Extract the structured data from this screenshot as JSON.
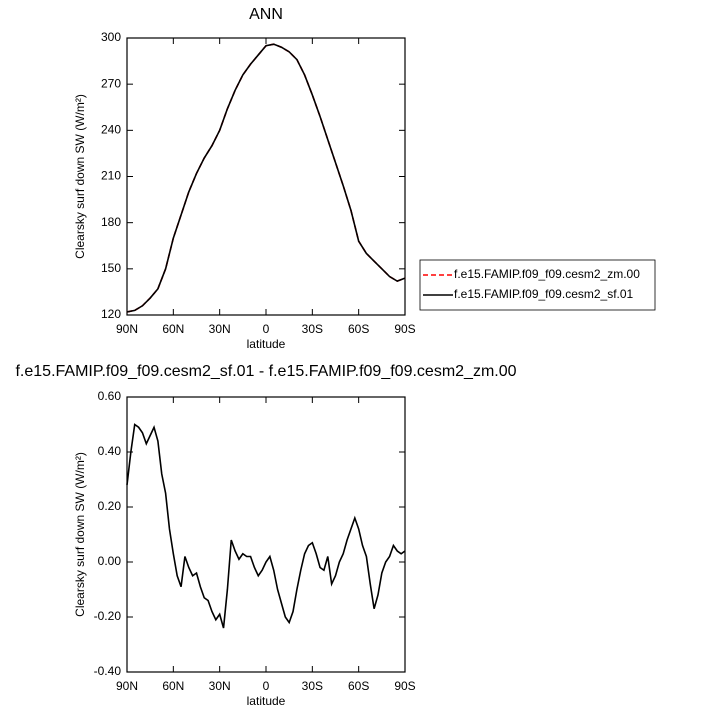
{
  "chart_data": [
    {
      "type": "line",
      "title": "ANN",
      "xlabel": "latitude",
      "ylabel": "Clearsky surf down SW (W/m²)",
      "x": [
        90,
        85,
        80,
        75,
        70,
        65,
        60,
        55,
        50,
        45,
        40,
        35,
        30,
        25,
        20,
        15,
        10,
        5,
        0,
        -5,
        -10,
        -15,
        -20,
        -25,
        -30,
        -35,
        -40,
        -45,
        -50,
        -55,
        -60,
        -65,
        -70,
        -75,
        -80,
        -85,
        -90
      ],
      "series": [
        {
          "name": "f.e15.FAMIP.f09_f09.cesm2_zm.00",
          "color": "#ff0000",
          "dashed": true,
          "values": [
            122,
            123,
            126,
            131,
            137,
            150,
            170,
            185,
            200,
            212,
            222,
            230,
            240,
            254,
            266,
            276,
            283,
            289,
            295,
            296,
            294,
            291,
            286,
            276,
            263,
            249,
            234,
            219,
            204,
            188,
            168,
            160,
            155,
            150,
            145,
            142,
            144
          ]
        },
        {
          "name": "f.e15.FAMIP.f09_f09.cesm2_sf.01",
          "color": "#000000",
          "dashed": false,
          "values": [
            122,
            123,
            126,
            131,
            137,
            150,
            170,
            185,
            200,
            212,
            222,
            230,
            240,
            254,
            266,
            276,
            283,
            289,
            295,
            296,
            294,
            291,
            286,
            276,
            263,
            249,
            234,
            219,
            204,
            188,
            168,
            160,
            155,
            150,
            145,
            142,
            144
          ]
        }
      ],
      "xlim": [
        90,
        -90
      ],
      "xticks": [
        {
          "value": 90,
          "label": "90N"
        },
        {
          "value": 60,
          "label": "60N"
        },
        {
          "value": 30,
          "label": "30N"
        },
        {
          "value": 0,
          "label": "0"
        },
        {
          "value": -30,
          "label": "30S"
        },
        {
          "value": -60,
          "label": "60S"
        },
        {
          "value": -90,
          "label": "90S"
        }
      ],
      "ylim": [
        120,
        300
      ],
      "yticks": [
        120,
        150,
        180,
        210,
        240,
        270,
        300
      ],
      "legend": "right"
    },
    {
      "type": "line",
      "title": "f.e15.FAMIP.f09_f09.cesm2_sf.01 - f.e15.FAMIP.f09_f09.cesm2_zm.00",
      "xlabel": "latitude",
      "ylabel": "Clearsky surf down SW (W/m²)",
      "x": [
        90,
        87.5,
        85,
        82.5,
        80,
        77.5,
        75,
        72.5,
        70,
        67.5,
        65,
        62.5,
        60,
        57.5,
        55,
        52.5,
        50,
        47.5,
        45,
        42.5,
        40,
        37.5,
        35,
        32.5,
        30,
        27.5,
        25,
        22.5,
        20,
        17.5,
        15,
        12.5,
        10,
        7.5,
        5,
        2.5,
        0,
        -2.5,
        -5,
        -7.5,
        -10,
        -12.5,
        -15,
        -17.5,
        -20,
        -22.5,
        -25,
        -27.5,
        -30,
        -32.5,
        -35,
        -37.5,
        -40,
        -42.5,
        -45,
        -47.5,
        -50,
        -52.5,
        -55,
        -57.5,
        -60,
        -62.5,
        -65,
        -67.5,
        -70,
        -72.5,
        -75,
        -77.5,
        -80,
        -82.5,
        -85,
        -87.5,
        -90
      ],
      "series": [
        {
          "color": "#000000",
          "dashed": false,
          "values": [
            0.28,
            0.4,
            0.5,
            0.49,
            0.47,
            0.43,
            0.46,
            0.49,
            0.44,
            0.32,
            0.25,
            0.12,
            0.03,
            -0.05,
            -0.09,
            0.02,
            -0.02,
            -0.05,
            -0.04,
            -0.09,
            -0.13,
            -0.14,
            -0.18,
            -0.21,
            -0.19,
            -0.24,
            -0.1,
            0.08,
            0.04,
            0.01,
            0.03,
            0.02,
            0.02,
            -0.02,
            -0.05,
            -0.03,
            0.0,
            0.02,
            -0.03,
            -0.1,
            -0.15,
            -0.2,
            -0.22,
            -0.18,
            -0.1,
            -0.03,
            0.03,
            0.06,
            0.07,
            0.03,
            -0.02,
            -0.03,
            0.02,
            -0.08,
            -0.05,
            0.0,
            0.03,
            0.08,
            0.12,
            0.16,
            0.12,
            0.06,
            0.02,
            -0.08,
            -0.17,
            -0.12,
            -0.04,
            0.0,
            0.02,
            0.06,
            0.04,
            0.03,
            0.04
          ]
        }
      ],
      "xlim": [
        90,
        -90
      ],
      "xticks": [
        {
          "value": 90,
          "label": "90N"
        },
        {
          "value": 60,
          "label": "60N"
        },
        {
          "value": 30,
          "label": "30N"
        },
        {
          "value": 0,
          "label": "0"
        },
        {
          "value": -30,
          "label": "30S"
        },
        {
          "value": -60,
          "label": "60S"
        },
        {
          "value": -90,
          "label": "90S"
        }
      ],
      "ylim": [
        -0.4,
        0.6
      ],
      "yticks": [
        {
          "value": -0.4,
          "label": "-0.40"
        },
        {
          "value": -0.2,
          "label": "-0.20"
        },
        {
          "value": 0,
          "label": "0.00"
        },
        {
          "value": 0.2,
          "label": "0.20"
        },
        {
          "value": 0.4,
          "label": "0.40"
        },
        {
          "value": 0.6,
          "label": "0.60"
        }
      ]
    }
  ]
}
